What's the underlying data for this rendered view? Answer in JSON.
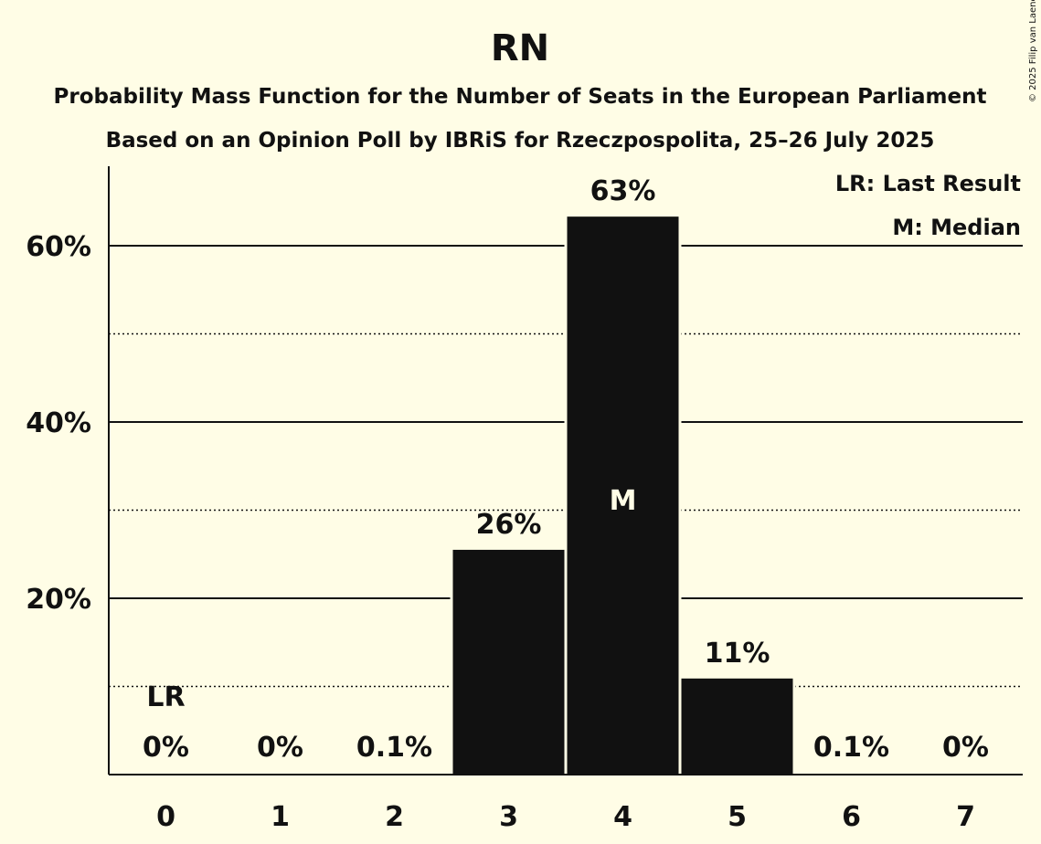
{
  "copyright": "© 2025 Filip van Laenen",
  "chart_data": {
    "type": "bar",
    "title": "RN",
    "subtitle": "Probability Mass Function for the Number of Seats in the European Parliament",
    "subtitle2": "Based on an Opinion Poll by IBRiS for Rzeczpospolita, 25–26 July 2025",
    "xlabel": "",
    "ylabel": "",
    "categories": [
      "0",
      "1",
      "2",
      "3",
      "4",
      "5",
      "6",
      "7"
    ],
    "values": [
      0,
      0,
      0.1,
      25.5,
      63.3,
      10.9,
      0.1,
      0
    ],
    "data_labels": [
      "0%",
      "0%",
      "0.1%",
      "26%",
      "63%",
      "11%",
      "0.1%",
      "0%"
    ],
    "ylim": [
      0,
      69
    ],
    "yticks": [
      20,
      40,
      60
    ],
    "ytick_labels": [
      "20%",
      "40%",
      "60%"
    ],
    "minor_gridlines": [
      10,
      30,
      50
    ],
    "last_result_index": 0,
    "last_result_label": "LR",
    "median_index": 4,
    "median_label": "M",
    "legend": [
      "LR: Last Result",
      "M: Median"
    ],
    "legend_position": "top-right"
  }
}
